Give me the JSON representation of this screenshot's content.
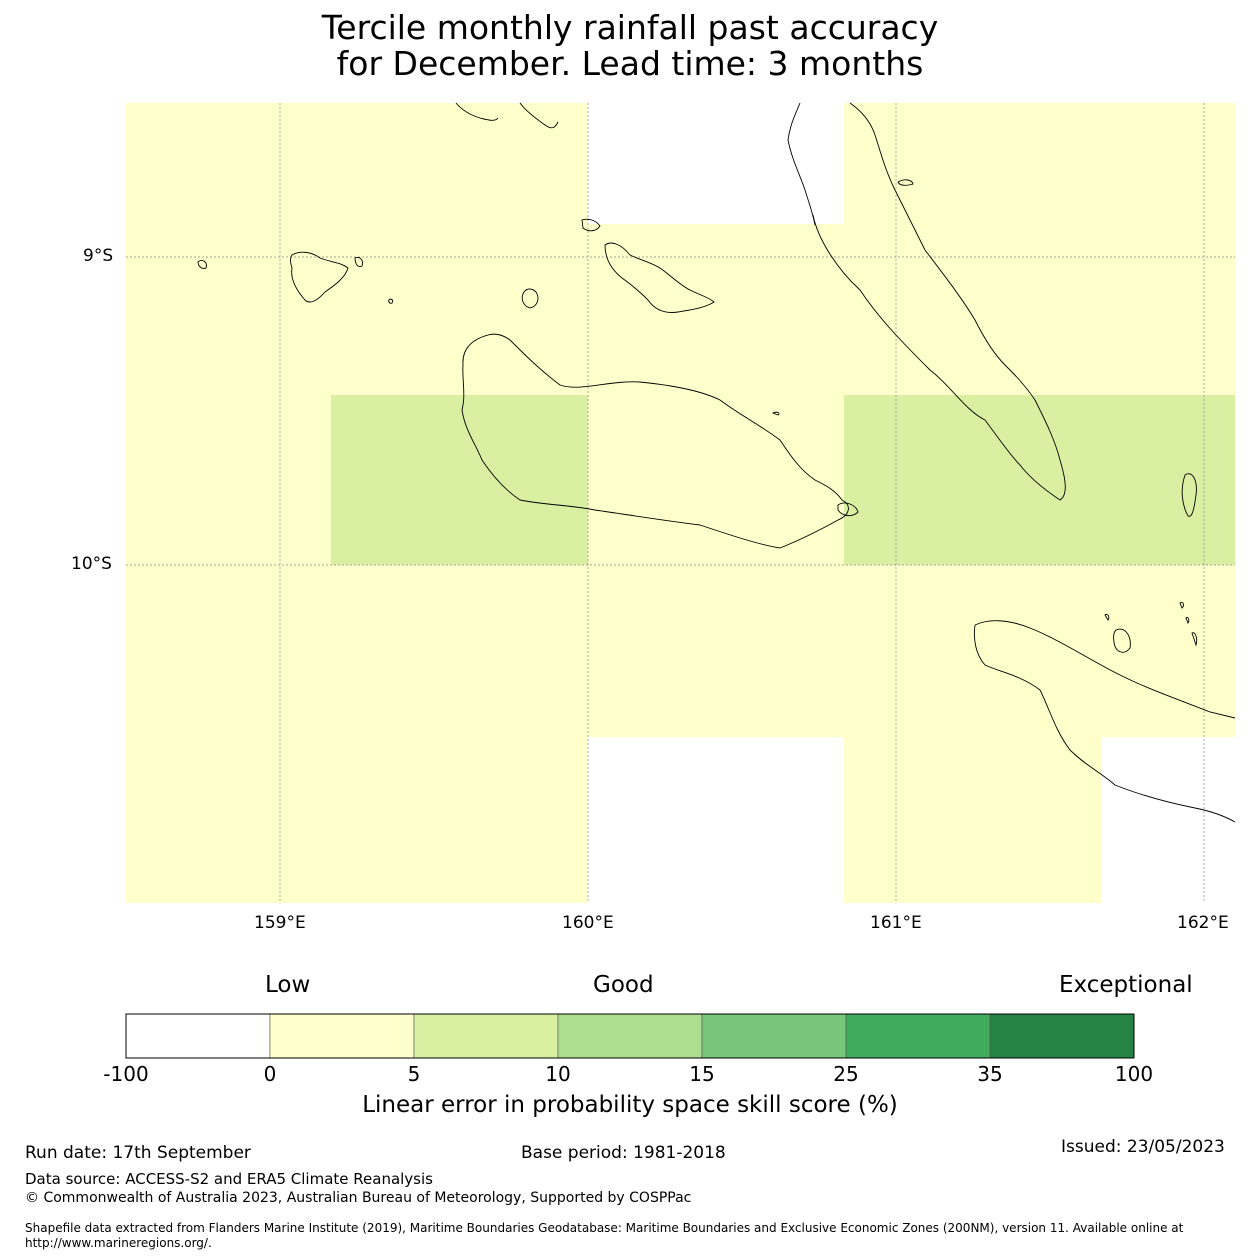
{
  "title": {
    "line1": "Tercile monthly rainfall past accuracy",
    "line2": "for December. Lead time: 3 months"
  },
  "map": {
    "lat_labels": [
      "9°S",
      "10°S"
    ],
    "lon_labels": [
      "159°E",
      "160°E",
      "161°E",
      "162°E"
    ],
    "extent": {
      "lon_min": 158.5,
      "lon_max": 162.1,
      "lat_min": -11.1,
      "lat_max": -8.5
    },
    "skill_cells_note": "yellow = 0-5, light green = 5-10, white = no data"
  },
  "colorbar": {
    "headings": {
      "low": "Low",
      "good": "Good",
      "exceptional": "Exceptional"
    },
    "boundaries": [
      "-100",
      "0",
      "5",
      "10",
      "15",
      "25",
      "35",
      "100"
    ],
    "colors": [
      "#ffffff",
      "#ffffcc",
      "#d9f0a3",
      "#addd8e",
      "#78c679",
      "#41ab5d",
      "#238443"
    ],
    "title": "Linear error in probability space skill score (%)"
  },
  "footer": {
    "run_date": "Run date: 17th September",
    "base_period": "Base period: 1981-2018",
    "issued": "Issued: 23/05/2023",
    "data_source": "Data source: ACCESS-S2 and ERA5 Climate Reanalysis",
    "copyright": "© Commonwealth of Australia 2023, Australian Bureau of Meteorology, Supported by COSPPac",
    "shapefile_line1": "Shapefile data extracted from Flanders Marine Institute (2019), Maritime Boundaries Geodatabase: Maritime Boundaries and Exclusive Economic Zones (200NM), version 11. Available online at",
    "shapefile_line2": "http://www.marineregions.org/."
  }
}
